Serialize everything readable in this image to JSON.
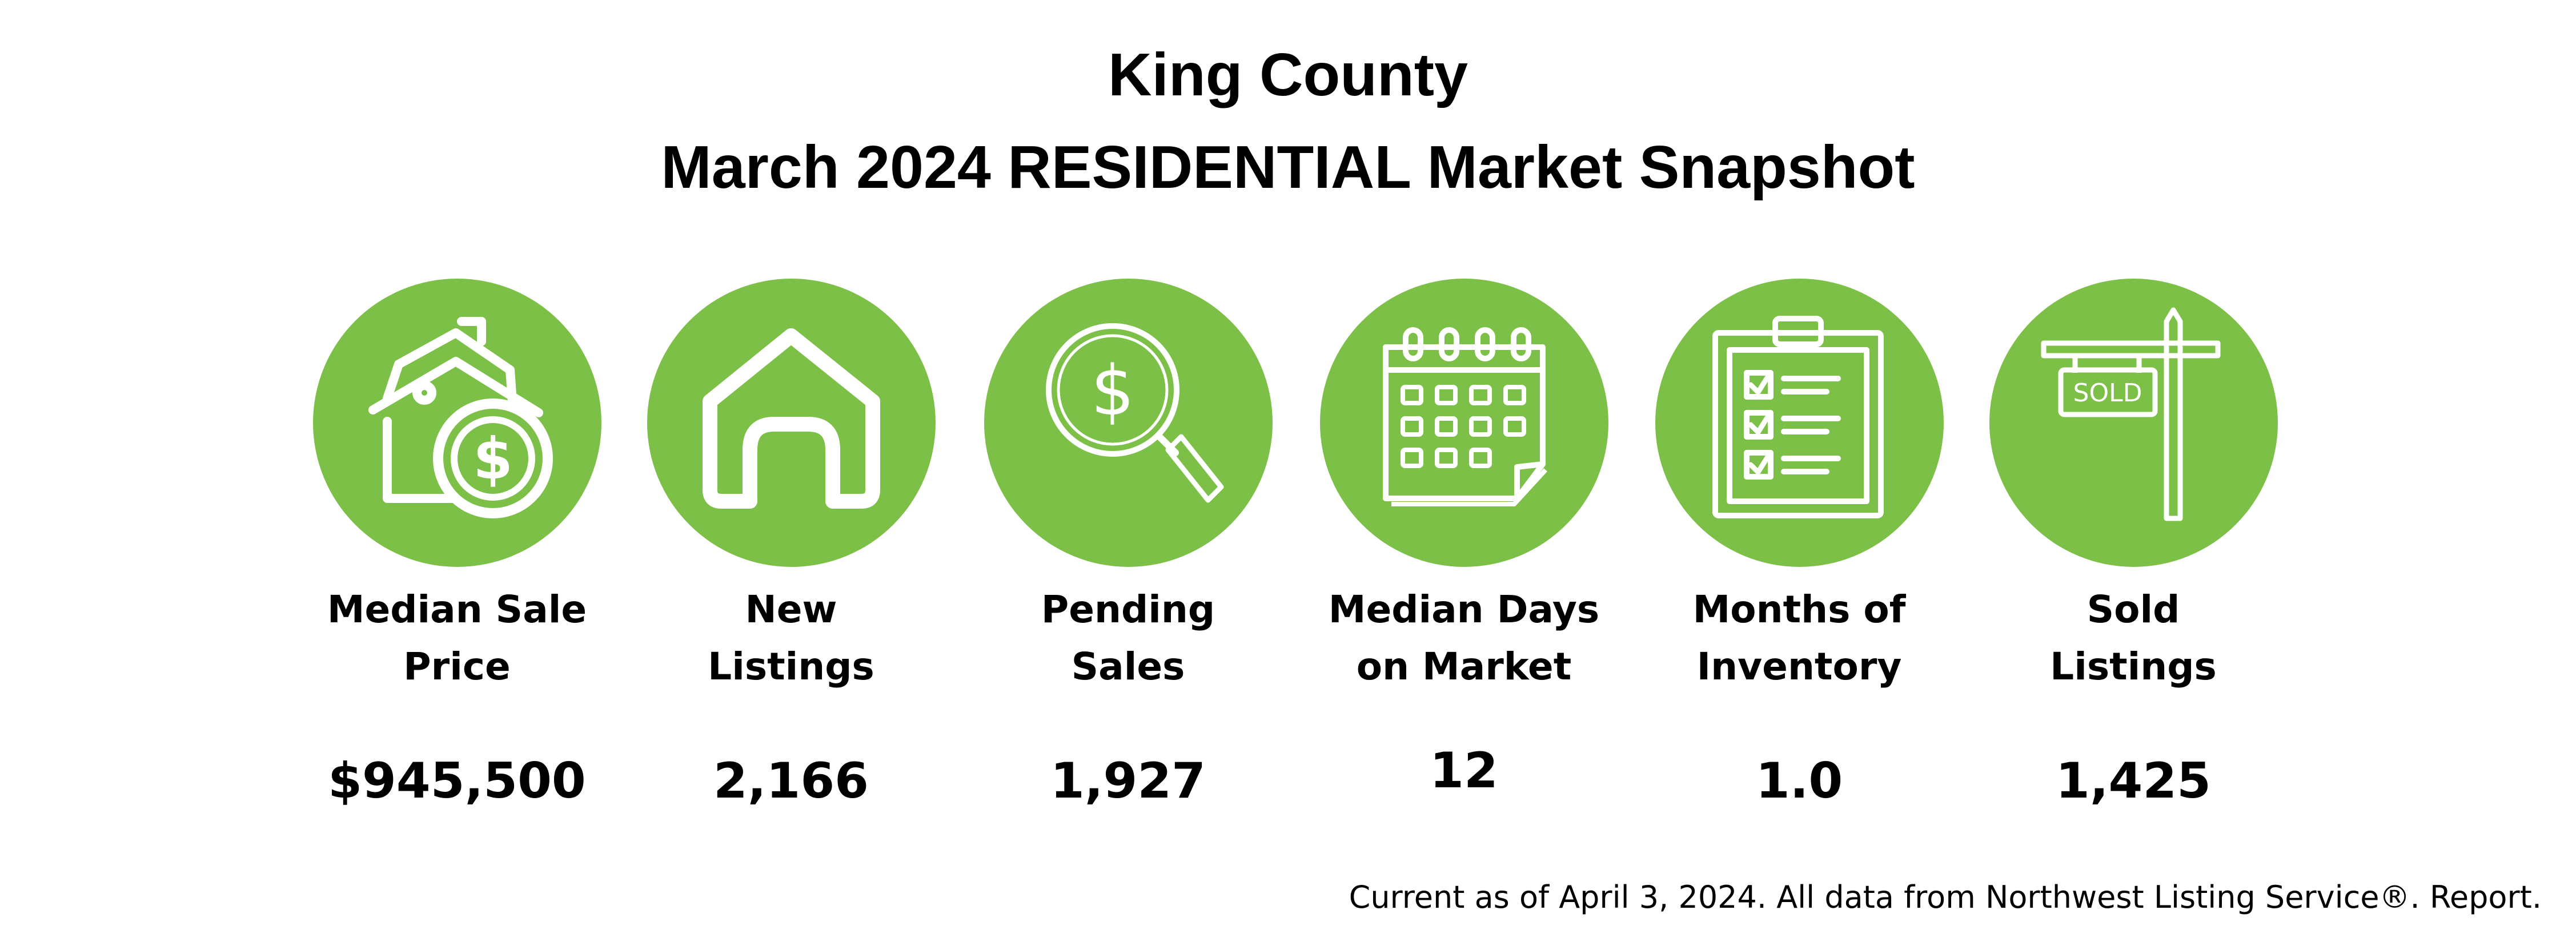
{
  "header": {
    "title_line1": "King County",
    "title_line2": "March 2024 RESIDENTIAL Market Snapshot"
  },
  "colors": {
    "circle": "#7dc047",
    "icon": "#ffffff",
    "text": "#000000"
  },
  "metrics": [
    {
      "icon": "house-dollar-icon",
      "label_line1": "Median Sale",
      "label_line2": "Price",
      "value": "$945,500"
    },
    {
      "icon": "house-icon",
      "label_line1": "New",
      "label_line2": "Listings",
      "value": "2,166"
    },
    {
      "icon": "magnifier-dollar-icon",
      "label_line1": "Pending",
      "label_line2": "Sales",
      "value": "1,927"
    },
    {
      "icon": "calendar-icon",
      "label_line1": "Median Days",
      "label_line2": "on Market",
      "value": "12"
    },
    {
      "icon": "clipboard-checklist-icon",
      "label_line1": "Months of",
      "label_line2": "Inventory",
      "value": "1.0"
    },
    {
      "icon": "sold-sign-icon",
      "label_line1": "Sold",
      "label_line2": "Listings",
      "value": "1,425",
      "sign_text": "SOLD"
    }
  ],
  "footnote": "Current as of April 3, 2024. All data from Northwest Listing Service®. Report."
}
